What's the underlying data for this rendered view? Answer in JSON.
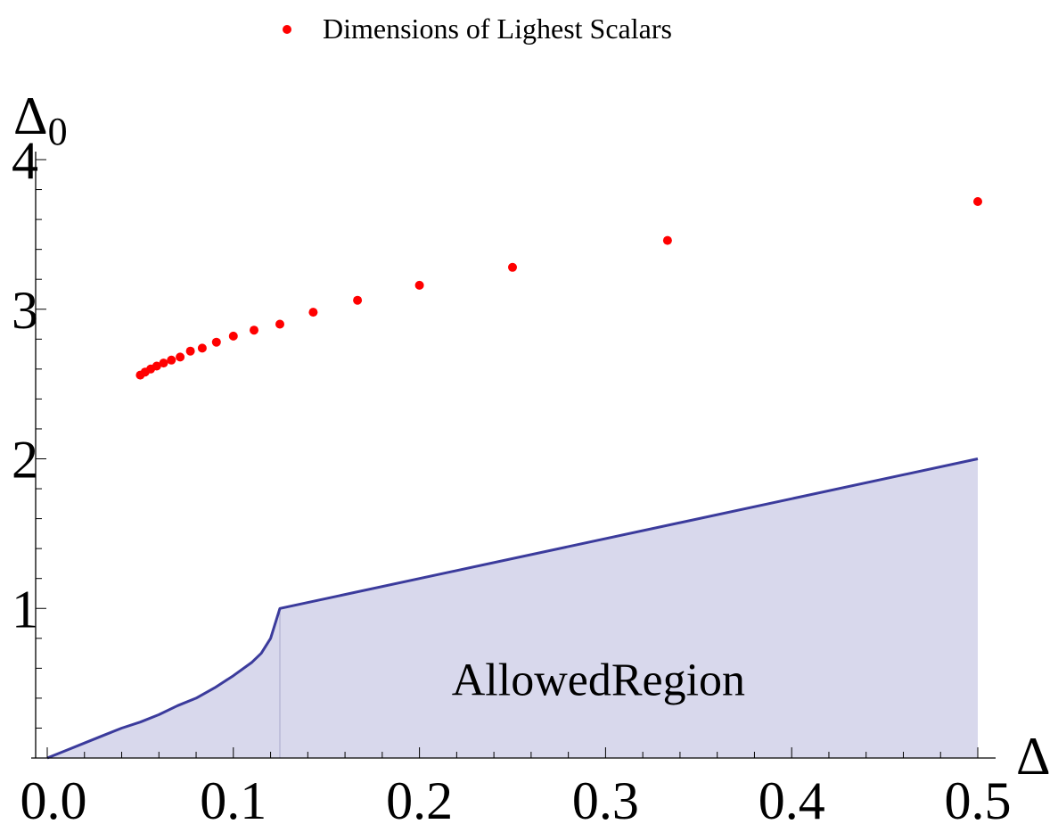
{
  "chart_data": {
    "type": "scatter",
    "xlabel": "Δ",
    "ylabel": "Δ0",
    "ylabel_main": "Δ",
    "ylabel_sub": "0",
    "xlim": [
      0.0,
      0.5
    ],
    "ylim": [
      0,
      4
    ],
    "x_ticks": [
      "0.0",
      "0.1",
      "0.2",
      "0.3",
      "0.4",
      "0.5"
    ],
    "x_tick_values": [
      0.0,
      0.1,
      0.2,
      0.3,
      0.4,
      0.5
    ],
    "y_ticks": [
      "1",
      "2",
      "3",
      "4"
    ],
    "y_tick_values": [
      1,
      2,
      3,
      4
    ],
    "grid": false,
    "legend_position": "top-center",
    "series": [
      {
        "name": "Dimensions of Lighest Scalars",
        "type": "scatter",
        "color": "#ff0000",
        "x": [
          0.5,
          0.3333,
          0.25,
          0.2,
          0.1667,
          0.1429,
          0.125,
          0.1111,
          0.1,
          0.0909,
          0.0833,
          0.0769,
          0.0714,
          0.0667,
          0.0625,
          0.0588,
          0.0556,
          0.0526,
          0.05
        ],
        "y": [
          3.72,
          3.46,
          3.28,
          3.16,
          3.06,
          2.98,
          2.9,
          2.86,
          2.82,
          2.78,
          2.74,
          2.72,
          2.68,
          2.66,
          2.64,
          2.62,
          2.6,
          2.58,
          2.56
        ]
      },
      {
        "type": "area",
        "color": "#3b3b9c",
        "fill": "#d8d8ec",
        "x": [
          0.0,
          0.01,
          0.02,
          0.03,
          0.04,
          0.05,
          0.06,
          0.07,
          0.08,
          0.09,
          0.1,
          0.11,
          0.115,
          0.12,
          0.125,
          0.5
        ],
        "y": [
          0.0,
          0.05,
          0.1,
          0.15,
          0.2,
          0.24,
          0.29,
          0.35,
          0.4,
          0.47,
          0.55,
          0.64,
          0.7,
          0.8,
          1.0,
          2.0
        ]
      }
    ],
    "annotations": [
      {
        "text": "AllowedRegion",
        "x": 0.3,
        "y": 0.45
      }
    ]
  }
}
